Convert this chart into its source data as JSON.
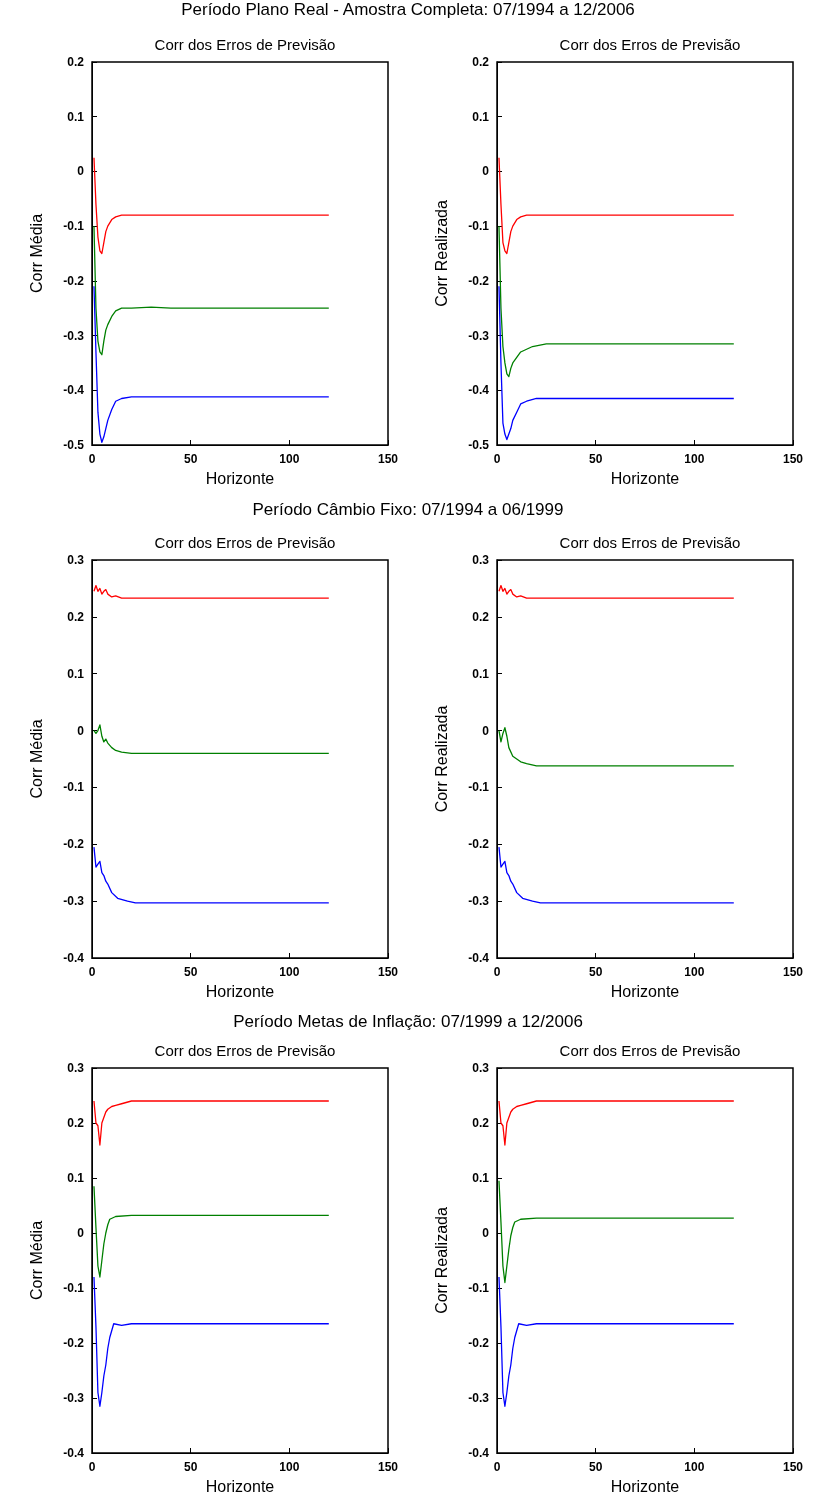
{
  "chart_data": [
    {
      "type": "line",
      "title": "Período Plano Real - Amostra Completa: 07/1994 a 12/2006",
      "subtitle": "Corr dos Erros de Previsão",
      "xlabel": "Horizonte",
      "ylabel": "Corr Média",
      "xlim": [
        0,
        150
      ],
      "xticks": [
        0,
        50,
        100,
        150
      ],
      "ylim": [
        -0.5,
        0.2
      ],
      "yticks": [
        -0.5,
        -0.4,
        -0.3,
        -0.2,
        -0.1,
        0,
        0.1,
        0.2
      ],
      "marker": "none",
      "line_style": "solid",
      "grid": false,
      "series": [
        {
          "color": "#ff0000",
          "x": [
            1,
            2,
            3,
            4,
            5,
            6,
            7,
            8,
            10,
            12,
            15,
            20,
            120
          ],
          "values": [
            0.025,
            -0.06,
            -0.12,
            -0.145,
            -0.15,
            -0.13,
            -0.11,
            -0.1,
            -0.088,
            -0.083,
            -0.08,
            -0.08,
            -0.08
          ]
        },
        {
          "color": "#008000",
          "x": [
            1,
            2,
            3,
            4,
            5,
            6,
            7,
            8,
            10,
            12,
            15,
            20,
            30,
            40,
            120
          ],
          "values": [
            -0.1,
            -0.25,
            -0.31,
            -0.33,
            -0.335,
            -0.31,
            -0.29,
            -0.28,
            -0.265,
            -0.255,
            -0.25,
            -0.25,
            -0.248,
            -0.25,
            -0.25
          ]
        },
        {
          "color": "#0000ff",
          "x": [
            1,
            2,
            3,
            4,
            5,
            6,
            7,
            8,
            10,
            12,
            15,
            20,
            120
          ],
          "values": [
            -0.21,
            -0.33,
            -0.44,
            -0.48,
            -0.495,
            -0.485,
            -0.47,
            -0.455,
            -0.435,
            -0.42,
            -0.415,
            -0.412,
            -0.412
          ]
        }
      ]
    },
    {
      "type": "line",
      "subtitle": "Corr dos Erros de Previsão",
      "xlabel": "Horizonte",
      "ylabel": "Corr Realizada",
      "xlim": [
        0,
        150
      ],
      "xticks": [
        0,
        50,
        100,
        150
      ],
      "ylim": [
        -0.5,
        0.2
      ],
      "yticks": [
        -0.5,
        -0.4,
        -0.3,
        -0.2,
        -0.1,
        0,
        0.1,
        0.2
      ],
      "marker": "none",
      "line_style": "solid",
      "grid": false,
      "series": [
        {
          "color": "#ff0000",
          "x": [
            1,
            2,
            3,
            4,
            5,
            6,
            7,
            8,
            10,
            12,
            15,
            20,
            120
          ],
          "values": [
            0.025,
            -0.06,
            -0.13,
            -0.145,
            -0.15,
            -0.13,
            -0.11,
            -0.1,
            -0.088,
            -0.083,
            -0.08,
            -0.08,
            -0.08
          ]
        },
        {
          "color": "#008000",
          "x": [
            1,
            2,
            3,
            4,
            5,
            6,
            7,
            8,
            10,
            12,
            15,
            18,
            25,
            120
          ],
          "values": [
            -0.1,
            -0.25,
            -0.32,
            -0.35,
            -0.37,
            -0.375,
            -0.36,
            -0.35,
            -0.34,
            -0.33,
            -0.325,
            -0.32,
            -0.315,
            -0.315
          ]
        },
        {
          "color": "#0000ff",
          "x": [
            1,
            2,
            3,
            4,
            5,
            6,
            7,
            8,
            10,
            12,
            15,
            20,
            120
          ],
          "values": [
            -0.21,
            -0.35,
            -0.46,
            -0.48,
            -0.49,
            -0.48,
            -0.47,
            -0.455,
            -0.44,
            -0.425,
            -0.42,
            -0.415,
            -0.415
          ]
        }
      ]
    },
    {
      "type": "line",
      "title": "Período Câmbio Fixo: 07/1994 a 06/1999",
      "subtitle": "Corr dos Erros de Previsão",
      "xlabel": "Horizonte",
      "ylabel": "Corr Média",
      "xlim": [
        0,
        150
      ],
      "xticks": [
        0,
        50,
        100,
        150
      ],
      "ylim": [
        -0.4,
        0.3
      ],
      "yticks": [
        -0.4,
        -0.3,
        -0.2,
        -0.1,
        0,
        0.1,
        0.2,
        0.3
      ],
      "marker": "none",
      "line_style": "solid",
      "grid": false,
      "series": [
        {
          "color": "#ff0000",
          "x": [
            1,
            2,
            3,
            4,
            5,
            6,
            7,
            8,
            10,
            12,
            15,
            120
          ],
          "values": [
            0.245,
            0.255,
            0.245,
            0.25,
            0.24,
            0.245,
            0.248,
            0.24,
            0.235,
            0.237,
            0.233,
            0.233
          ]
        },
        {
          "color": "#008000",
          "x": [
            1,
            2,
            3,
            4,
            5,
            6,
            7,
            8,
            10,
            12,
            15,
            20,
            120
          ],
          "values": [
            0,
            -0.005,
            0,
            0.01,
            -0.01,
            -0.02,
            -0.015,
            -0.022,
            -0.03,
            -0.035,
            -0.038,
            -0.04,
            -0.04
          ]
        },
        {
          "color": "#0000ff",
          "x": [
            1,
            2,
            3,
            4,
            5,
            6,
            7,
            8,
            10,
            13,
            18,
            22,
            120
          ],
          "values": [
            -0.205,
            -0.24,
            -0.235,
            -0.23,
            -0.25,
            -0.255,
            -0.265,
            -0.27,
            -0.285,
            -0.295,
            -0.3,
            -0.303,
            -0.303
          ]
        }
      ]
    },
    {
      "type": "line",
      "subtitle": "Corr dos Erros de Previsão",
      "xlabel": "Horizonte",
      "ylabel": "Corr Realizada",
      "xlim": [
        0,
        150
      ],
      "xticks": [
        0,
        50,
        100,
        150
      ],
      "ylim": [
        -0.4,
        0.3
      ],
      "yticks": [
        -0.4,
        -0.3,
        -0.2,
        -0.1,
        0,
        0.1,
        0.2,
        0.3
      ],
      "marker": "none",
      "line_style": "solid",
      "grid": false,
      "series": [
        {
          "color": "#ff0000",
          "x": [
            1,
            2,
            3,
            4,
            5,
            6,
            7,
            8,
            10,
            12,
            15,
            120
          ],
          "values": [
            0.245,
            0.255,
            0.245,
            0.25,
            0.24,
            0.245,
            0.248,
            0.24,
            0.235,
            0.237,
            0.233,
            0.233
          ]
        },
        {
          "color": "#008000",
          "x": [
            1,
            2,
            3,
            4,
            5,
            6,
            8,
            10,
            12,
            15,
            20,
            120
          ],
          "values": [
            0,
            -0.02,
            -0.005,
            0.005,
            -0.01,
            -0.03,
            -0.045,
            -0.05,
            -0.055,
            -0.058,
            -0.062,
            -0.062
          ]
        },
        {
          "color": "#0000ff",
          "x": [
            1,
            2,
            3,
            4,
            5,
            6,
            7,
            8,
            10,
            13,
            18,
            22,
            120
          ],
          "values": [
            -0.205,
            -0.24,
            -0.235,
            -0.23,
            -0.25,
            -0.255,
            -0.265,
            -0.27,
            -0.285,
            -0.295,
            -0.3,
            -0.303,
            -0.303
          ]
        }
      ]
    },
    {
      "type": "line",
      "title": "Período Metas de Inflação: 07/1999 a 12/2006",
      "subtitle": "Corr dos Erros de Previsão",
      "xlabel": "Horizonte",
      "ylabel": "Corr Média",
      "xlim": [
        0,
        150
      ],
      "xticks": [
        0,
        50,
        100,
        150
      ],
      "ylim": [
        -0.4,
        0.3
      ],
      "yticks": [
        -0.4,
        -0.3,
        -0.2,
        -0.1,
        0,
        0.1,
        0.2,
        0.3
      ],
      "marker": "none",
      "line_style": "solid",
      "grid": false,
      "series": [
        {
          "color": "#ff0000",
          "x": [
            1,
            2,
            3,
            4,
            5,
            6,
            7,
            8,
            10,
            12,
            15,
            20,
            120
          ],
          "values": [
            0.24,
            0.2,
            0.195,
            0.16,
            0.2,
            0.21,
            0.22,
            0.225,
            0.23,
            0.232,
            0.235,
            0.24,
            0.24
          ]
        },
        {
          "color": "#008000",
          "x": [
            1,
            2,
            3,
            4,
            5,
            6,
            7,
            8,
            9,
            12,
            20,
            120
          ],
          "values": [
            0.085,
            0.01,
            -0.06,
            -0.08,
            -0.05,
            -0.02,
            0,
            0.015,
            0.025,
            0.03,
            0.032,
            0.032
          ]
        },
        {
          "color": "#0000ff",
          "x": [
            1,
            2,
            3,
            4,
            5,
            6,
            7,
            8,
            9,
            11,
            15,
            20,
            120
          ],
          "values": [
            -0.08,
            -0.17,
            -0.29,
            -0.315,
            -0.29,
            -0.26,
            -0.24,
            -0.21,
            -0.19,
            -0.165,
            -0.168,
            -0.165,
            -0.165
          ]
        }
      ]
    },
    {
      "type": "line",
      "subtitle": "Corr dos Erros de Previsão",
      "xlabel": "Horizonte",
      "ylabel": "Corr Realizada",
      "xlim": [
        0,
        150
      ],
      "xticks": [
        0,
        50,
        100,
        150
      ],
      "ylim": [
        -0.4,
        0.3
      ],
      "yticks": [
        -0.4,
        -0.3,
        -0.2,
        -0.1,
        0,
        0.1,
        0.2,
        0.3
      ],
      "marker": "none",
      "line_style": "solid",
      "grid": false,
      "series": [
        {
          "color": "#ff0000",
          "x": [
            1,
            2,
            3,
            4,
            5,
            6,
            7,
            8,
            10,
            12,
            15,
            20,
            120
          ],
          "values": [
            0.24,
            0.2,
            0.195,
            0.16,
            0.2,
            0.21,
            0.22,
            0.225,
            0.23,
            0.232,
            0.235,
            0.24,
            0.24
          ]
        },
        {
          "color": "#008000",
          "x": [
            1,
            2,
            3,
            4,
            5,
            6,
            7,
            8,
            9,
            12,
            20,
            120
          ],
          "values": [
            0.095,
            0.02,
            -0.06,
            -0.09,
            -0.06,
            -0.03,
            -0.005,
            0.01,
            0.02,
            0.025,
            0.027,
            0.027
          ]
        },
        {
          "color": "#0000ff",
          "x": [
            1,
            2,
            3,
            4,
            5,
            6,
            7,
            8,
            9,
            11,
            15,
            20,
            120
          ],
          "values": [
            -0.08,
            -0.17,
            -0.29,
            -0.315,
            -0.29,
            -0.26,
            -0.24,
            -0.21,
            -0.19,
            -0.165,
            -0.168,
            -0.165,
            -0.165
          ]
        }
      ]
    }
  ]
}
